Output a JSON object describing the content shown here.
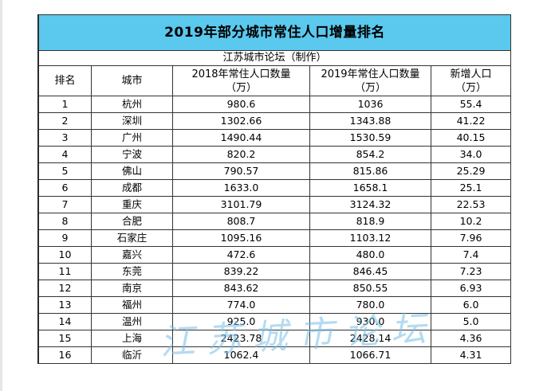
{
  "table": {
    "title": "2019年部分城市常住人口增量排名",
    "source": "江苏城市论坛（制作）",
    "headers": [
      {
        "line1": "排名",
        "line2": ""
      },
      {
        "line1": "城市",
        "line2": ""
      },
      {
        "line1": "2018年常住人口数量",
        "line2": "（万）"
      },
      {
        "line1": "2019年常住人口数量",
        "line2": "（万）"
      },
      {
        "line1": "新增人口",
        "line2": "（万）"
      }
    ],
    "rows": [
      [
        "1",
        "杭州",
        "980.6",
        "1036",
        "55.4"
      ],
      [
        "2",
        "深圳",
        "1302.66",
        "1343.88",
        "41.22"
      ],
      [
        "3",
        "广州",
        "1490.44",
        "1530.59",
        "40.15"
      ],
      [
        "4",
        "宁波",
        "820.2",
        "854.2",
        "34.0"
      ],
      [
        "5",
        "佛山",
        "790.57",
        "815.86",
        "25.29"
      ],
      [
        "6",
        "成都",
        "1633.0",
        "1658.1",
        "25.1"
      ],
      [
        "7",
        "重庆",
        "3101.79",
        "3124.32",
        "22.53"
      ],
      [
        "8",
        "合肥",
        "808.7",
        "818.9",
        "10.2"
      ],
      [
        "9",
        "石家庄",
        "1095.16",
        "1103.12",
        "7.96"
      ],
      [
        "10",
        "嘉兴",
        "472.6",
        "480.0",
        "7.4"
      ],
      [
        "11",
        "东莞",
        "839.22",
        "846.45",
        "7.23"
      ],
      [
        "12",
        "南京",
        "843.62",
        "850.55",
        "6.93"
      ],
      [
        "13",
        "福州",
        "774.0",
        "780.0",
        "6.0"
      ],
      [
        "14",
        "温州",
        "925.0",
        "930.0",
        "5.0"
      ],
      [
        "15",
        "上海",
        "2423.78",
        "2428.14",
        "4.36"
      ],
      [
        "16",
        "临沂",
        "1062.4",
        "1066.71",
        "4.31"
      ]
    ]
  },
  "watermark": "江苏城市论坛",
  "colors": {
    "title_bg": "#5bc8ee",
    "watermark": "#78bee6"
  }
}
